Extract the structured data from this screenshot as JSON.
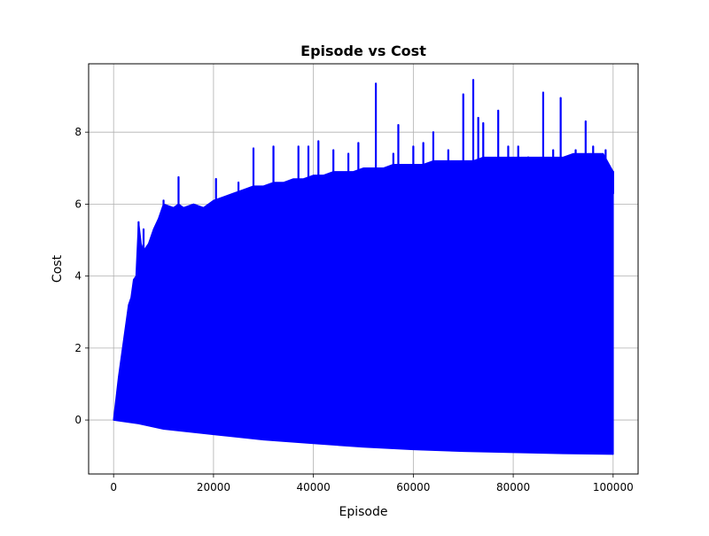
{
  "chart_data": {
    "type": "line",
    "title": "Episode vs Cost",
    "xlabel": "Episode",
    "ylabel": "Cost",
    "xlim": [
      -5000,
      105000
    ],
    "ylim": [
      -1.5,
      9.9
    ],
    "xticks": [
      0,
      20000,
      40000,
      60000,
      80000,
      100000
    ],
    "xtick_labels": [
      "0",
      "20000",
      "40000",
      "60000",
      "80000",
      "100000"
    ],
    "yticks": [
      0,
      2,
      4,
      6,
      8
    ],
    "ytick_labels": [
      "0",
      "2",
      "4",
      "6",
      "8"
    ],
    "grid": true,
    "legend": "none",
    "series": [
      {
        "color": "#0000ff",
        "style": "dense-oscillation",
        "upper_envelope": {
          "x": [
            0,
            500,
            1000,
            1500,
            2000,
            2500,
            3000,
            3500,
            4000,
            4500,
            5000,
            5500,
            6000,
            7000,
            8000,
            9000,
            10000,
            12000,
            13000,
            14000,
            16000,
            18000,
            20000,
            22000,
            24000,
            26000,
            28000,
            30000,
            32000,
            34000,
            36000,
            38000,
            40000,
            42000,
            44000,
            46000,
            48000,
            50000,
            52000,
            54000,
            56000,
            58000,
            60000,
            62000,
            64000,
            66000,
            68000,
            70000,
            72000,
            74000,
            76000,
            78000,
            80000,
            82000,
            84000,
            86000,
            88000,
            90000,
            92000,
            94000,
            96000,
            98000,
            100000
          ],
          "y": [
            0.0,
            0.6,
            1.2,
            1.7,
            2.2,
            2.7,
            3.2,
            3.4,
            3.9,
            4.0,
            5.5,
            4.9,
            4.7,
            4.9,
            5.3,
            5.6,
            6.0,
            5.9,
            6.0,
            5.9,
            6.0,
            5.9,
            6.1,
            6.2,
            6.3,
            6.4,
            6.5,
            6.5,
            6.6,
            6.6,
            6.7,
            6.7,
            6.8,
            6.8,
            6.9,
            6.9,
            6.9,
            7.0,
            7.0,
            7.0,
            7.1,
            7.1,
            7.1,
            7.1,
            7.2,
            7.2,
            7.2,
            7.2,
            7.2,
            7.3,
            7.3,
            7.3,
            7.3,
            7.3,
            7.3,
            7.3,
            7.3,
            7.3,
            7.4,
            7.4,
            7.4,
            7.4,
            6.9
          ]
        },
        "lower_envelope": {
          "x": [
            0,
            5000,
            10000,
            20000,
            30000,
            40000,
            50000,
            60000,
            70000,
            80000,
            90000,
            100000
          ],
          "y": [
            0.0,
            -0.1,
            -0.25,
            -0.4,
            -0.55,
            -0.65,
            -0.75,
            -0.82,
            -0.87,
            -0.9,
            -0.93,
            -0.95
          ]
        },
        "spikes": {
          "x": [
            5000,
            6000,
            10000,
            13000,
            20500,
            25000,
            28000,
            32000,
            37000,
            39000,
            41000,
            44000,
            47000,
            49000,
            52500,
            56000,
            57000,
            60000,
            62000,
            64000,
            67000,
            70000,
            72000,
            73000,
            74000,
            77000,
            79000,
            81000,
            83000,
            86000,
            88000,
            89500,
            91000,
            92500,
            94500,
            96000,
            97000,
            98500,
            100000
          ],
          "y": [
            5.5,
            5.3,
            6.1,
            6.75,
            6.7,
            6.6,
            7.55,
            7.6,
            7.6,
            7.6,
            7.75,
            7.5,
            7.4,
            7.7,
            9.35,
            7.4,
            8.2,
            7.6,
            7.7,
            8.0,
            7.5,
            9.05,
            9.45,
            8.4,
            8.25,
            8.6,
            7.6,
            7.6,
            7.3,
            9.1,
            7.5,
            8.95,
            7.1,
            7.5,
            8.3,
            7.6,
            7.0,
            7.5,
            6.9
          ]
        }
      }
    ]
  }
}
